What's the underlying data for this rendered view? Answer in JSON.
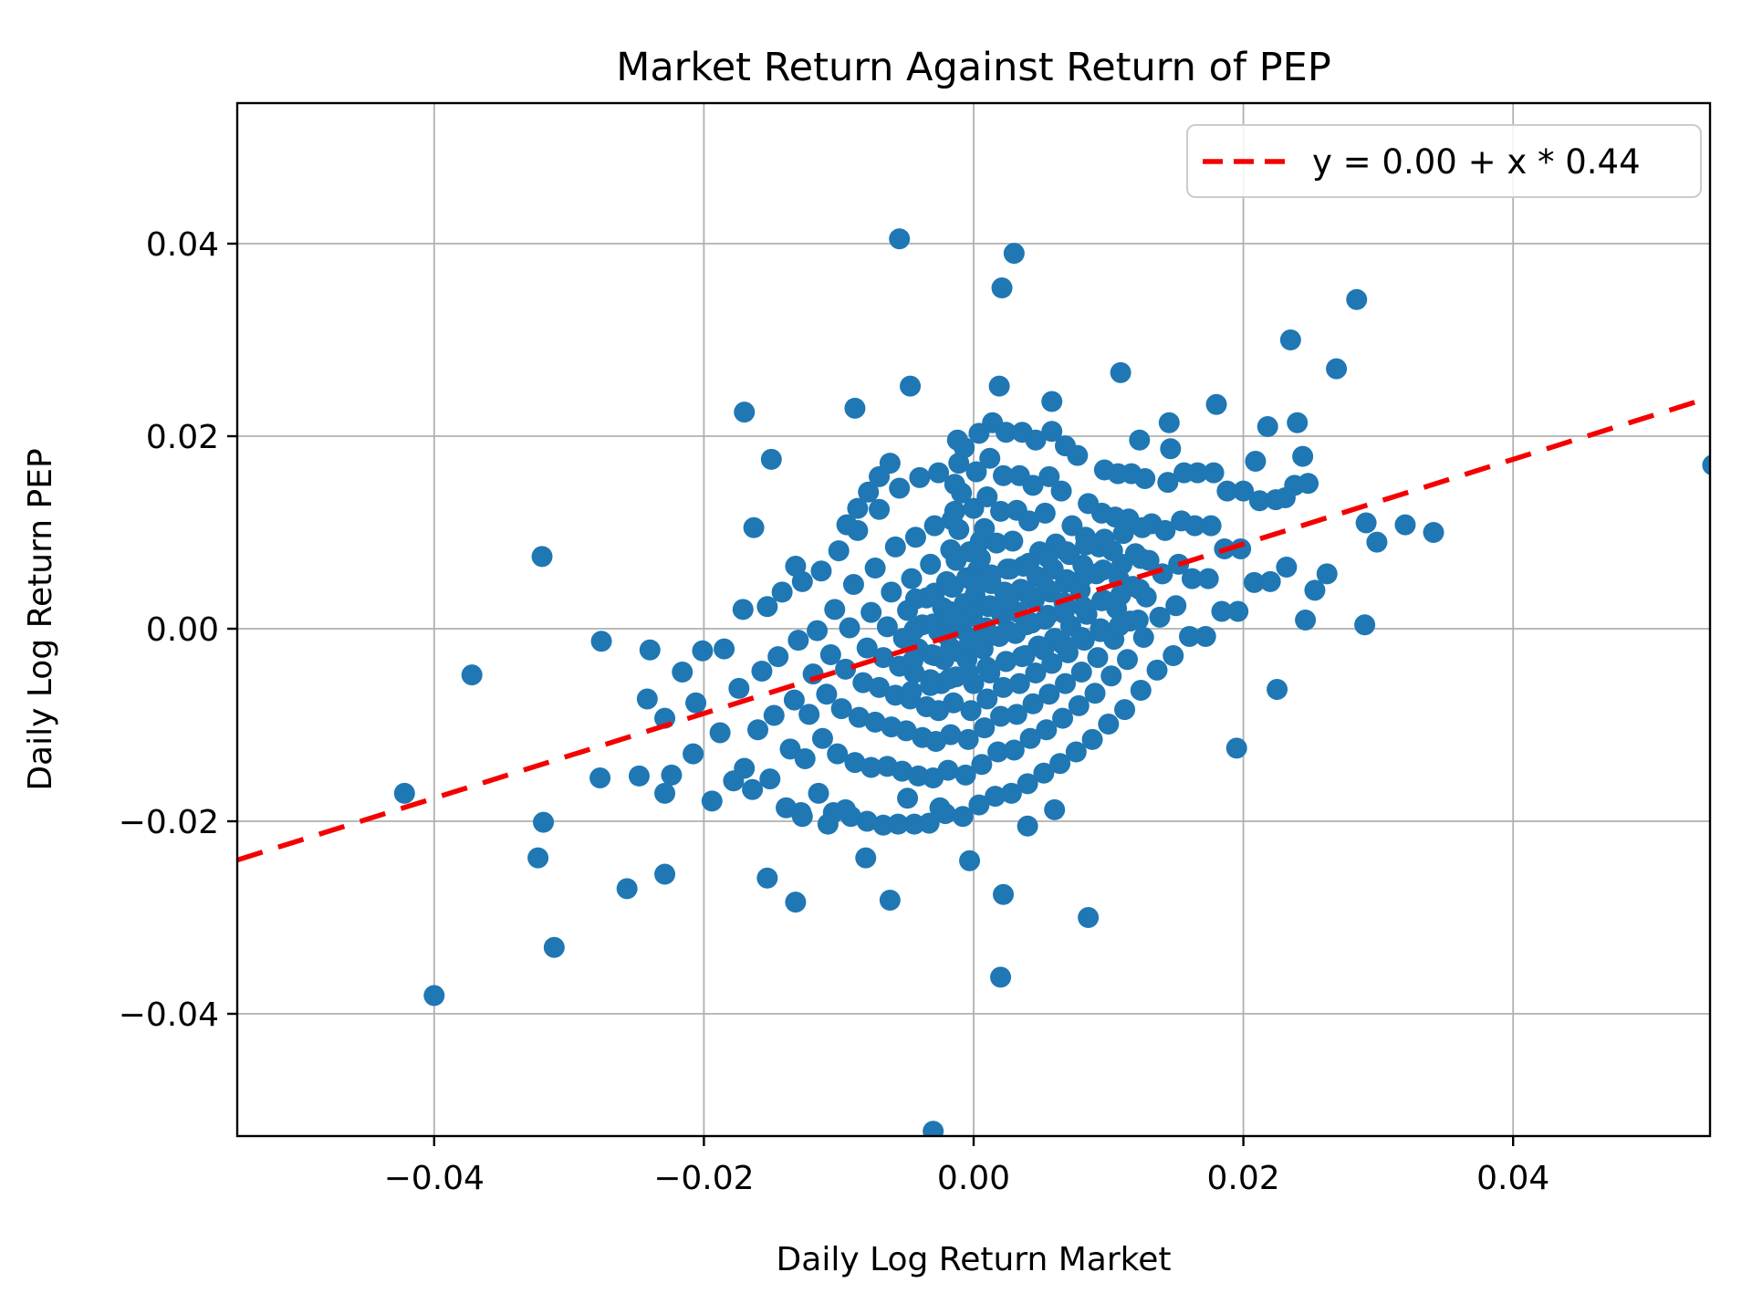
{
  "figure": {
    "background": "#ffffff"
  },
  "chart_data": {
    "type": "scatter",
    "title": "Market Return Against Return of PEP",
    "xlabel": "Daily Log Return Market",
    "ylabel": "Daily Log Return PEP",
    "xlim": [
      -0.0546,
      0.0546
    ],
    "ylim": [
      -0.0527,
      0.0546
    ],
    "grid": true,
    "grid_color": "#b0b0b0",
    "spine_color": "#000000",
    "legend_position": "upper right",
    "legend_border_color": "#cccccc",
    "legend_background": "rgba(255,255,255,0.85)",
    "marker_color": "#1f77b4",
    "xticks": [
      {
        "value": -0.04,
        "label": "−0.04"
      },
      {
        "value": -0.02,
        "label": "−0.02"
      },
      {
        "value": 0.0,
        "label": "0.00"
      },
      {
        "value": 0.02,
        "label": "0.02"
      },
      {
        "value": 0.04,
        "label": "0.04"
      }
    ],
    "yticks": [
      {
        "value": 0.04,
        "label": "0.04"
      },
      {
        "value": 0.02,
        "label": "0.02"
      },
      {
        "value": 0.0,
        "label": "0.00"
      },
      {
        "value": -0.02,
        "label": "−0.02"
      },
      {
        "value": -0.04,
        "label": "−0.04"
      }
    ],
    "regression_line": {
      "label": "y = 0.00 + x * 0.44",
      "intercept": 0.0,
      "slope": 0.44,
      "color": "#f50000",
      "style": "dashed"
    },
    "points_unit": "1e-4 daily log return (divide by 10000 for data value)",
    "points_x1e4": [
      [
        -224,
        -152
      ],
      [
        -216,
        -45
      ],
      [
        -208,
        -130
      ],
      [
        -201,
        -23
      ],
      [
        -194,
        -179
      ],
      [
        -188,
        -108
      ],
      [
        -185,
        -21
      ],
      [
        -178,
        -158
      ],
      [
        -174,
        -62
      ],
      [
        -171,
        20
      ],
      [
        -164,
        -167
      ],
      [
        -160,
        -105
      ],
      [
        -157,
        -44
      ],
      [
        -153,
        23
      ],
      [
        -151,
        -156
      ],
      [
        -148,
        -90
      ],
      [
        -145,
        -29
      ],
      [
        -142,
        38
      ],
      [
        -139,
        -186
      ],
      [
        -136,
        -125
      ],
      [
        -133,
        -74
      ],
      [
        -130,
        -12
      ],
      [
        -127,
        49
      ],
      [
        -128,
        -191
      ],
      [
        -125,
        -135
      ],
      [
        -122,
        -89
      ],
      [
        -119,
        -47
      ],
      [
        -116,
        -2
      ],
      [
        -113,
        60
      ],
      [
        -115,
        -171
      ],
      [
        -112,
        -114
      ],
      [
        -109,
        -68
      ],
      [
        -106,
        -27
      ],
      [
        -103,
        20
      ],
      [
        -100,
        81
      ],
      [
        -104,
        -191
      ],
      [
        -101,
        -130
      ],
      [
        -98,
        -83
      ],
      [
        -95,
        -42
      ],
      [
        -92,
        1
      ],
      [
        -89,
        46
      ],
      [
        -86,
        102
      ],
      [
        -91,
        -195
      ],
      [
        -88,
        -139
      ],
      [
        -85,
        -92
      ],
      [
        -82,
        -56
      ],
      [
        -79,
        -20
      ],
      [
        -76,
        17
      ],
      [
        -73,
        63
      ],
      [
        -70,
        124
      ],
      [
        -79,
        -200
      ],
      [
        -76,
        -144
      ],
      [
        -73,
        -97
      ],
      [
        -70,
        -61
      ],
      [
        -67,
        -30
      ],
      [
        -64,
        2
      ],
      [
        -61,
        38
      ],
      [
        -58,
        85
      ],
      [
        -55,
        146
      ],
      [
        -67,
        -204
      ],
      [
        -64,
        -143
      ],
      [
        -61,
        -102
      ],
      [
        -58,
        -69
      ],
      [
        -55,
        -39
      ],
      [
        -52,
        -10
      ],
      [
        -49,
        19
      ],
      [
        -46,
        52
      ],
      [
        -43,
        95
      ],
      [
        -40,
        157
      ],
      [
        -56,
        -203
      ],
      [
        -53,
        -148
      ],
      [
        -50,
        -106
      ],
      [
        -47,
        -73
      ],
      [
        -44,
        -46
      ],
      [
        -41,
        -21
      ],
      [
        -38,
        4
      ],
      [
        -35,
        32
      ],
      [
        -32,
        67
      ],
      [
        -29,
        107
      ],
      [
        -26,
        162
      ],
      [
        -44,
        -203
      ],
      [
        -41,
        -153
      ],
      [
        -38,
        -113
      ],
      [
        -35,
        -81
      ],
      [
        -32,
        -53
      ],
      [
        -29,
        -28
      ],
      [
        -26,
        -3
      ],
      [
        -23,
        22
      ],
      [
        -20,
        49
      ],
      [
        -17,
        82
      ],
      [
        -14,
        122
      ],
      [
        -11,
        172
      ],
      [
        -33,
        -202
      ],
      [
        -30,
        -155
      ],
      [
        -28,
        -117
      ],
      [
        -26,
        -85
      ],
      [
        -24,
        -57
      ],
      [
        -22,
        -32
      ],
      [
        -20,
        -7
      ],
      [
        -18,
        18
      ],
      [
        -16,
        43
      ],
      [
        -13,
        71
      ],
      [
        -11,
        103
      ],
      [
        -9,
        141
      ],
      [
        -7,
        188
      ],
      [
        -21,
        -192
      ],
      [
        -19,
        -147
      ],
      [
        -17,
        -110
      ],
      [
        -15,
        -77
      ],
      [
        -13,
        -50
      ],
      [
        -11,
        -24
      ],
      [
        -9,
        0
      ],
      [
        -7,
        26
      ],
      [
        -5,
        53
      ],
      [
        -3,
        80
      ],
      [
        -16,
        113
      ],
      [
        -14,
        150
      ],
      [
        -12,
        196
      ],
      [
        -8,
        -195
      ],
      [
        -6,
        -152
      ],
      [
        -4,
        -115
      ],
      [
        -2,
        -85
      ],
      [
        0,
        -57
      ],
      [
        -5,
        -32
      ],
      [
        -3,
        -9
      ],
      [
        -1,
        13
      ],
      [
        1,
        35
      ],
      [
        3,
        61
      ],
      [
        5,
        91
      ],
      [
        0,
        125
      ],
      [
        2,
        163
      ],
      [
        4,
        203
      ],
      [
        4,
        -183
      ],
      [
        6,
        -141
      ],
      [
        8,
        -103
      ],
      [
        10,
        -73
      ],
      [
        12,
        -46
      ],
      [
        7,
        -21
      ],
      [
        9,
        1
      ],
      [
        11,
        23
      ],
      [
        13,
        47
      ],
      [
        5,
        73
      ],
      [
        8,
        104
      ],
      [
        10,
        137
      ],
      [
        12,
        177
      ],
      [
        14,
        214
      ],
      [
        16,
        -174
      ],
      [
        18,
        -128
      ],
      [
        20,
        -91
      ],
      [
        22,
        -61
      ],
      [
        24,
        -34
      ],
      [
        19,
        -8
      ],
      [
        21,
        14
      ],
      [
        23,
        38
      ],
      [
        25,
        62
      ],
      [
        17,
        89
      ],
      [
        20,
        122
      ],
      [
        22,
        159
      ],
      [
        24,
        204
      ],
      [
        28,
        -171
      ],
      [
        30,
        -126
      ],
      [
        32,
        -89
      ],
      [
        34,
        -57
      ],
      [
        36,
        -29
      ],
      [
        31,
        -5
      ],
      [
        33,
        17
      ],
      [
        35,
        41
      ],
      [
        37,
        65
      ],
      [
        29,
        91
      ],
      [
        32,
        123
      ],
      [
        34,
        159
      ],
      [
        36,
        204
      ],
      [
        40,
        -161
      ],
      [
        42,
        -114
      ],
      [
        44,
        -78
      ],
      [
        46,
        -46
      ],
      [
        48,
        -18
      ],
      [
        43,
        6
      ],
      [
        45,
        30
      ],
      [
        47,
        54
      ],
      [
        49,
        80
      ],
      [
        41,
        112
      ],
      [
        44,
        149
      ],
      [
        46,
        196
      ],
      [
        52,
        -150
      ],
      [
        54,
        -105
      ],
      [
        56,
        -68
      ],
      [
        58,
        -36
      ],
      [
        60,
        -10
      ],
      [
        55,
        14
      ],
      [
        57,
        38
      ],
      [
        59,
        62
      ],
      [
        61,
        88
      ],
      [
        53,
        120
      ],
      [
        56,
        158
      ],
      [
        58,
        205
      ],
      [
        64,
        -140
      ],
      [
        66,
        -93
      ],
      [
        68,
        -57
      ],
      [
        70,
        -25
      ],
      [
        72,
        3
      ],
      [
        67,
        27
      ],
      [
        69,
        51
      ],
      [
        71,
        77
      ],
      [
        73,
        107
      ],
      [
        65,
        143
      ],
      [
        68,
        190
      ],
      [
        76,
        -128
      ],
      [
        78,
        -80
      ],
      [
        80,
        -45
      ],
      [
        82,
        -12
      ],
      [
        84,
        15
      ],
      [
        79,
        40
      ],
      [
        81,
        66
      ],
      [
        83,
        95
      ],
      [
        85,
        130
      ],
      [
        77,
        180
      ],
      [
        88,
        -115
      ],
      [
        90,
        -67
      ],
      [
        92,
        -30
      ],
      [
        94,
        0
      ],
      [
        96,
        30
      ],
      [
        91,
        57
      ],
      [
        93,
        85
      ],
      [
        95,
        120
      ],
      [
        97,
        165
      ],
      [
        100,
        -99
      ],
      [
        102,
        -49
      ],
      [
        104,
        -11
      ],
      [
        106,
        21
      ],
      [
        108,
        51
      ],
      [
        103,
        81
      ],
      [
        105,
        116
      ],
      [
        107,
        161
      ],
      [
        112,
        -84
      ],
      [
        114,
        -32
      ],
      [
        116,
        8
      ],
      [
        118,
        44
      ],
      [
        120,
        78
      ],
      [
        115,
        114
      ],
      [
        117,
        161
      ],
      [
        124,
        -64
      ],
      [
        126,
        -9
      ],
      [
        128,
        33
      ],
      [
        130,
        71
      ],
      [
        132,
        109
      ],
      [
        127,
        156
      ],
      [
        136,
        -43
      ],
      [
        138,
        12
      ],
      [
        140,
        57
      ],
      [
        142,
        102
      ],
      [
        144,
        152
      ],
      [
        148,
        -28
      ],
      [
        150,
        24
      ],
      [
        152,
        67
      ],
      [
        154,
        112
      ],
      [
        156,
        162
      ],
      [
        160,
        -8
      ],
      [
        162,
        52
      ],
      [
        164,
        107
      ],
      [
        166,
        162
      ],
      [
        172,
        -8
      ],
      [
        174,
        52
      ],
      [
        176,
        107
      ],
      [
        178,
        162
      ],
      [
        184,
        18
      ],
      [
        186,
        83
      ],
      [
        188,
        143
      ],
      [
        196,
        18
      ],
      [
        198,
        83
      ],
      [
        200,
        143
      ],
      [
        208,
        48
      ],
      [
        212,
        133
      ],
      [
        220,
        49
      ],
      [
        224,
        134
      ],
      [
        232,
        64
      ],
      [
        238,
        149
      ],
      [
        -46,
        -65
      ],
      [
        -45,
        -33
      ],
      [
        -44,
        -1
      ],
      [
        -43,
        31
      ],
      [
        -32,
        -59
      ],
      [
        -31,
        -27
      ],
      [
        -30,
        5
      ],
      [
        -29,
        37
      ],
      [
        -18,
        -52
      ],
      [
        -17,
        -20
      ],
      [
        -16,
        12
      ],
      [
        -15,
        44
      ],
      [
        -4,
        -46
      ],
      [
        -3,
        -14
      ],
      [
        -2,
        18
      ],
      [
        -1,
        50
      ],
      [
        10,
        -40
      ],
      [
        11,
        -8
      ],
      [
        12,
        24
      ],
      [
        13,
        56
      ],
      [
        24,
        -34
      ],
      [
        25,
        -2
      ],
      [
        26,
        30
      ],
      [
        27,
        62
      ],
      [
        38,
        -28
      ],
      [
        39,
        4
      ],
      [
        40,
        36
      ],
      [
        41,
        68
      ],
      [
        52,
        -22
      ],
      [
        53,
        10
      ],
      [
        54,
        42
      ],
      [
        55,
        74
      ],
      [
        66,
        -16
      ],
      [
        67,
        16
      ],
      [
        68,
        48
      ],
      [
        69,
        80
      ],
      [
        80,
        -9
      ],
      [
        81,
        23
      ],
      [
        82,
        55
      ],
      [
        83,
        87
      ],
      [
        94,
        -3
      ],
      [
        95,
        29
      ],
      [
        96,
        61
      ],
      [
        97,
        93
      ],
      [
        108,
        3
      ],
      [
        109,
        35
      ],
      [
        110,
        67
      ],
      [
        111,
        99
      ],
      [
        122,
        9
      ],
      [
        123,
        41
      ],
      [
        124,
        73
      ],
      [
        125,
        105
      ],
      [
        -55,
        405
      ],
      [
        30,
        390
      ],
      [
        21,
        354
      ],
      [
        284,
        342
      ],
      [
        235,
        300
      ],
      [
        269,
        270
      ],
      [
        -47,
        252
      ],
      [
        19,
        252
      ],
      [
        -170,
        225
      ],
      [
        -88,
        229
      ],
      [
        58,
        236
      ],
      [
        109,
        266
      ],
      [
        -320,
        75
      ],
      [
        240,
        214
      ],
      [
        218,
        210
      ],
      [
        244,
        179
      ],
      [
        209,
        174
      ],
      [
        248,
        151
      ],
      [
        231,
        136
      ],
      [
        291,
        110
      ],
      [
        299,
        90
      ],
      [
        320,
        108
      ],
      [
        341,
        100
      ],
      [
        290,
        4
      ],
      [
        246,
        9
      ],
      [
        253,
        40
      ],
      [
        262,
        57
      ],
      [
        180,
        233
      ],
      [
        145,
        214
      ],
      [
        146,
        187
      ],
      [
        123,
        196
      ],
      [
        548,
        170
      ],
      [
        225,
        -63
      ],
      [
        195,
        -124
      ],
      [
        85,
        -300
      ],
      [
        22,
        -276
      ],
      [
        20,
        -362
      ],
      [
        -372,
        -48
      ],
      [
        -422,
        -171
      ],
      [
        -276,
        -13
      ],
      [
        -240,
        -22
      ],
      [
        -242,
        -73
      ],
      [
        -229,
        -93
      ],
      [
        -206,
        -77
      ],
      [
        -277,
        -155
      ],
      [
        -248,
        -153
      ],
      [
        -229,
        -171
      ],
      [
        -319,
        -201
      ],
      [
        -323,
        -238
      ],
      [
        -257,
        -270
      ],
      [
        -229,
        -255
      ],
      [
        -311,
        -331
      ],
      [
        -400,
        -381
      ],
      [
        -150,
        176
      ],
      [
        -163,
        105
      ],
      [
        -132,
        65
      ],
      [
        -153,
        -259
      ],
      [
        -132,
        -284
      ],
      [
        -62,
        -282
      ],
      [
        -30,
        -522
      ],
      [
        -127,
        -195
      ],
      [
        -108,
        -203
      ],
      [
        -95,
        -188
      ],
      [
        -49,
        -176
      ],
      [
        -25,
        -186
      ],
      [
        40,
        -205
      ],
      [
        -170,
        -145
      ],
      [
        60,
        -188
      ],
      [
        -3,
        -241
      ],
      [
        -80,
        -238
      ],
      [
        -62,
        172
      ],
      [
        -70,
        158
      ],
      [
        -78,
        142
      ],
      [
        -86,
        125
      ],
      [
        -94,
        108
      ]
    ]
  }
}
